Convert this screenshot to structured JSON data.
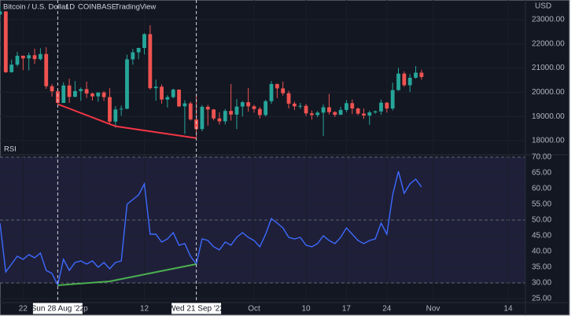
{
  "chart_data": {
    "type": "candlestick",
    "title": "Bitcoin / U.S. Dollar",
    "interval": "1D",
    "exchange": "COINBASE",
    "source": "TradingView",
    "currency": "USD",
    "x": [
      "2022-08-18",
      "2022-08-19",
      "2022-08-20",
      "2022-08-21",
      "2022-08-22",
      "2022-08-23",
      "2022-08-24",
      "2022-08-25",
      "2022-08-26",
      "2022-08-27",
      "2022-08-28",
      "2022-08-29",
      "2022-08-30",
      "2022-08-31",
      "2022-09-01",
      "2022-09-02",
      "2022-09-03",
      "2022-09-04",
      "2022-09-05",
      "2022-09-06",
      "2022-09-07",
      "2022-09-08",
      "2022-09-09",
      "2022-09-10",
      "2022-09-11",
      "2022-09-12",
      "2022-09-13",
      "2022-09-14",
      "2022-09-15",
      "2022-09-16",
      "2022-09-17",
      "2022-09-18",
      "2022-09-19",
      "2022-09-20",
      "2022-09-21",
      "2022-09-22",
      "2022-09-23",
      "2022-09-24",
      "2022-09-25",
      "2022-09-26",
      "2022-09-27",
      "2022-09-28",
      "2022-09-29",
      "2022-09-30",
      "2022-10-01",
      "2022-10-02",
      "2022-10-03",
      "2022-10-04",
      "2022-10-05",
      "2022-10-06",
      "2022-10-07",
      "2022-10-08",
      "2022-10-09",
      "2022-10-10",
      "2022-10-11",
      "2022-10-12",
      "2022-10-13",
      "2022-10-14",
      "2022-10-15",
      "2022-10-16",
      "2022-10-17",
      "2022-10-18",
      "2022-10-19",
      "2022-10-20",
      "2022-10-21",
      "2022-10-22",
      "2022-10-23",
      "2022-10-24",
      "2022-10-25",
      "2022-10-26",
      "2022-10-27",
      "2022-10-28",
      "2022-10-29",
      "2022-10-30"
    ],
    "open": [
      23210,
      23340,
      20830,
      21140,
      21510,
      21400,
      21530,
      21370,
      21580,
      20250,
      20040,
      19560,
      20280,
      19810,
      20050,
      20130,
      19950,
      19830,
      19990,
      19800,
      18790,
      19290,
      19320,
      21360,
      21650,
      21830,
      22400,
      20170,
      20230,
      19700,
      19800,
      20110,
      19420,
      19540,
      18880,
      18480,
      19400,
      19290,
      18920,
      18800,
      19230,
      19080,
      19410,
      19590,
      19420,
      19310,
      19060,
      19630,
      20340,
      20160,
      19960,
      19530,
      19420,
      19440,
      19130,
      19060,
      19160,
      19380,
      19180,
      19070,
      19270,
      19550,
      19330,
      19120,
      19040,
      19170,
      19210,
      19570,
      19330,
      20090,
      20770,
      20290,
      20600,
      20810
    ],
    "high": [
      23580,
      23340,
      21350,
      21670,
      21510,
      21640,
      21800,
      21820,
      21860,
      20340,
      20140,
      20410,
      20560,
      20460,
      20200,
      20440,
      19990,
      20000,
      20050,
      20170,
      19430,
      19450,
      21550,
      21790,
      21840,
      22440,
      22770,
      20520,
      20320,
      19880,
      20150,
      20110,
      19670,
      19610,
      19910,
      19470,
      19480,
      19310,
      19170,
      19310,
      20340,
      19720,
      19640,
      20180,
      19480,
      19390,
      19690,
      20460,
      20360,
      20440,
      20060,
      19620,
      19560,
      19520,
      19250,
      19230,
      19500,
      19930,
      19220,
      19400,
      19680,
      19700,
      19370,
      19330,
      19240,
      19250,
      19700,
      19600,
      20400,
      21010,
      20860,
      20750,
      21080,
      20930
    ],
    "low": [
      23110,
      20800,
      20810,
      21070,
      20910,
      20900,
      21170,
      21310,
      20140,
      19820,
      19530,
      19560,
      19560,
      19810,
      19650,
      19760,
      19660,
      19610,
      19640,
      18690,
      18540,
      19030,
      19300,
      21140,
      21370,
      21560,
      20110,
      19650,
      19530,
      19370,
      19750,
      19390,
      18280,
      18830,
      18150,
      18390,
      18620,
      18840,
      18670,
      18670,
      18830,
      18480,
      19000,
      19200,
      19160,
      18920,
      19000,
      19520,
      19760,
      19860,
      19330,
      19270,
      19320,
      19020,
      18870,
      18970,
      18190,
      19080,
      18980,
      19070,
      19170,
      19100,
      19050,
      18900,
      18660,
      19110,
      19070,
      19160,
      19250,
      20060,
      20230,
      20010,
      20560,
      20520
    ],
    "close": [
      23340,
      20830,
      21140,
      21510,
      21400,
      21530,
      21370,
      21580,
      20250,
      20040,
      19560,
      20280,
      19810,
      20050,
      20130,
      19950,
      19830,
      19990,
      19800,
      18790,
      19290,
      19320,
      21360,
      21650,
      21830,
      22400,
      20170,
      20230,
      19700,
      19800,
      20110,
      19420,
      19540,
      18880,
      18480,
      19400,
      19290,
      18920,
      18800,
      19230,
      19080,
      19410,
      19590,
      19420,
      19310,
      19060,
      19630,
      20340,
      20160,
      19960,
      19530,
      19420,
      19440,
      19130,
      19060,
      19160,
      19380,
      19180,
      19070,
      19270,
      19550,
      19330,
      19120,
      19040,
      19170,
      19210,
      19570,
      19330,
      20090,
      20770,
      20290,
      20600,
      20810,
      20630
    ],
    "up_color": "#26a69a",
    "down_color": "#ef5350",
    "xlim": [
      "2022-08-18",
      "2022-11-17"
    ],
    "xticks": [
      {
        "value": "2022-08-22",
        "label": "22"
      },
      {
        "value": "2022-09-01",
        "label": "Sep"
      },
      {
        "value": "2022-09-12",
        "label": "12"
      },
      {
        "value": "2022-10-01",
        "label": "Oct"
      },
      {
        "value": "2022-10-10",
        "label": "10"
      },
      {
        "value": "2022-10-17",
        "label": "17"
      },
      {
        "value": "2022-10-24",
        "label": "24"
      },
      {
        "value": "2022-11-01",
        "label": "Nov"
      },
      {
        "value": "2022-11-14",
        "label": "14"
      }
    ],
    "ylim": [
      17450,
      23810
    ],
    "yticks": [
      {
        "value": 18000,
        "label": "18000.00"
      },
      {
        "value": 19000,
        "label": "19000.00"
      },
      {
        "value": 20000,
        "label": "20000.00"
      },
      {
        "value": 21000,
        "label": "21000.00"
      },
      {
        "value": 22000,
        "label": "22000.00"
      },
      {
        "value": 23000,
        "label": "23000.00"
      }
    ],
    "grid": true,
    "drawings": [
      {
        "color": "#f23645",
        "x": [
          "2022-08-28",
          "2022-09-07",
          "2022-09-21"
        ],
        "y": [
          19510,
          18600,
          18110
        ]
      }
    ],
    "crosshairs": [
      {
        "x": "2022-08-28",
        "label": "Sun 28 Aug '22"
      },
      {
        "x": "2022-09-21",
        "label": "Wed 21 Sep '22"
      }
    ],
    "panes": [
      {
        "type": "line",
        "name": "RSI",
        "color": "#3d6bff",
        "values": [
          49,
          33.5,
          36,
          38.5,
          37.5,
          39,
          38,
          39.5,
          34,
          33,
          29.3,
          37.5,
          34,
          36.5,
          37,
          36,
          37,
          35,
          36.5,
          34.5,
          36.5,
          37,
          55,
          56.5,
          58,
          61.5,
          45.5,
          45.5,
          43,
          44,
          46,
          42,
          42.5,
          38.5,
          36,
          44,
          43.5,
          41.5,
          40.5,
          43,
          42,
          44.5,
          46,
          44.5,
          43.5,
          41.5,
          45.5,
          50.5,
          49,
          47.5,
          44.5,
          44,
          44.5,
          42,
          41.5,
          42.5,
          45,
          43.5,
          42.5,
          44.5,
          47.5,
          45.5,
          43.5,
          42.5,
          43.5,
          44,
          49,
          45.5,
          58,
          65.5,
          58.5,
          61.5,
          63,
          60.5
        ],
        "ylim": [
          23.75,
          70.75
        ],
        "yticks": [
          {
            "value": 25,
            "label": "25.00"
          },
          {
            "value": 30,
            "label": "30.00"
          },
          {
            "value": 35,
            "label": "35.00"
          },
          {
            "value": 40,
            "label": "40.00"
          },
          {
            "value": 45,
            "label": "45.00"
          },
          {
            "value": 50,
            "label": "50.00"
          },
          {
            "value": 55,
            "label": "55.00"
          },
          {
            "value": 60,
            "label": "60.00"
          },
          {
            "value": 65,
            "label": "65.00"
          },
          {
            "value": 70,
            "label": "70.00"
          }
        ],
        "band": [
          30,
          70
        ],
        "band_color": "#1f1f3a",
        "levels": [
          30,
          50,
          70
        ],
        "drawings": [
          {
            "color": "#4caf50",
            "x": [
              "2022-08-28",
              "2022-09-06",
              "2022-09-21"
            ],
            "y": [
              29.25,
              30.5,
              36
            ]
          }
        ]
      }
    ]
  }
}
